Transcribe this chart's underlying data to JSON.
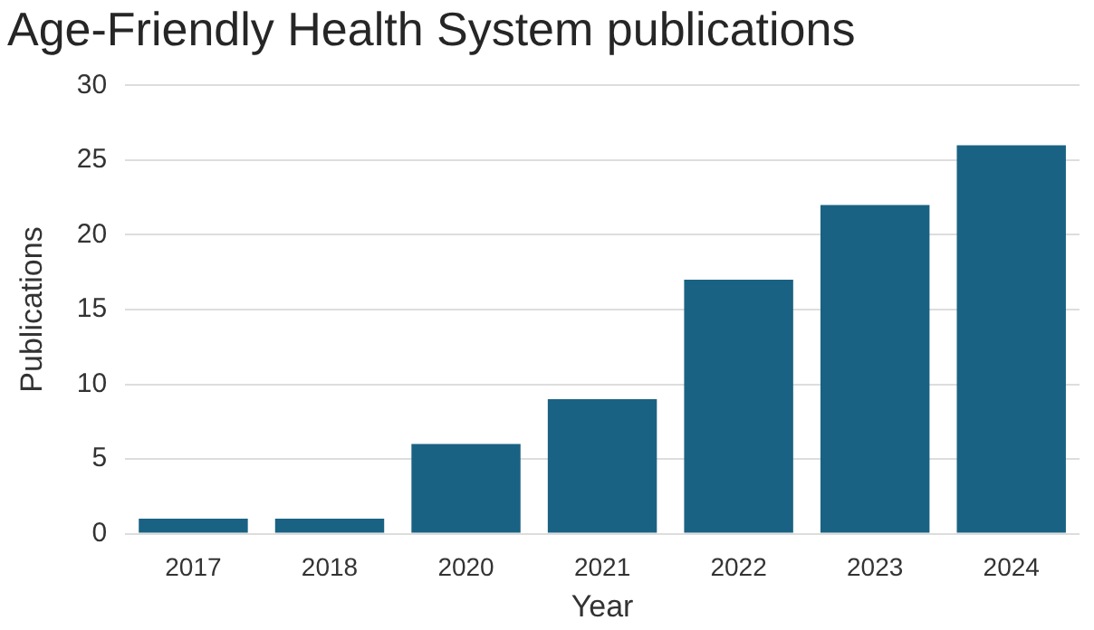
{
  "chart_data": {
    "type": "bar",
    "title": "Age-Friendly Health System publications",
    "xlabel": "Year",
    "ylabel": "Publications",
    "categories": [
      "2017",
      "2018",
      "2020",
      "2021",
      "2022",
      "2023",
      "2024"
    ],
    "values": [
      1,
      1,
      6,
      9,
      17,
      22,
      26
    ],
    "color": "#1a6283",
    "ylim": [
      0,
      30
    ],
    "yticks": [
      0,
      5,
      10,
      15,
      20,
      25,
      30
    ],
    "grid": "y"
  }
}
